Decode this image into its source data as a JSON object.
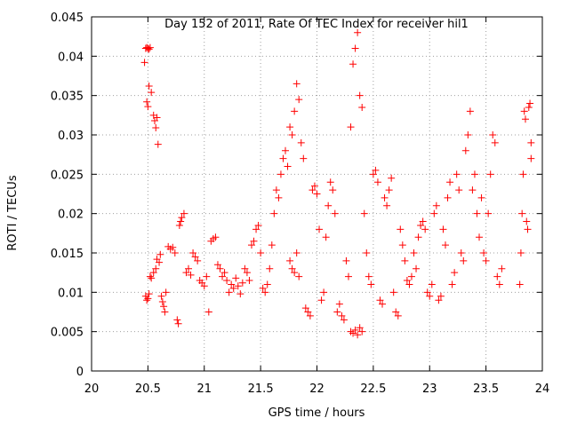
{
  "chart_data": {
    "type": "scatter",
    "title": "Day 152 of 2011, Rate Of TEC Index for receiver hil1",
    "xlabel": "GPS time / hours",
    "ylabel": "ROTI / TECUs",
    "xlim": [
      20,
      24
    ],
    "ylim": [
      0,
      0.045
    ],
    "x_ticks": [
      "20",
      "20.5",
      "21",
      "21.5",
      "22",
      "22.5",
      "23",
      "23.5",
      "24"
    ],
    "y_ticks": [
      "0",
      "0.005",
      "0.01",
      "0.015",
      "0.02",
      "0.025",
      "0.03",
      "0.035",
      "0.04",
      "0.045"
    ],
    "grid": true,
    "marker": "+",
    "color": "#ff0000",
    "points": [
      [
        20.47,
        0.0392
      ],
      [
        20.48,
        0.041
      ],
      [
        20.49,
        0.0411
      ],
      [
        20.5,
        0.041
      ],
      [
        20.51,
        0.0409
      ],
      [
        20.52,
        0.0411
      ],
      [
        20.49,
        0.0342
      ],
      [
        20.5,
        0.0336
      ],
      [
        20.51,
        0.0362
      ],
      [
        20.53,
        0.0354
      ],
      [
        20.55,
        0.0325
      ],
      [
        20.56,
        0.0318
      ],
      [
        20.57,
        0.0309
      ],
      [
        20.58,
        0.0322
      ],
      [
        20.59,
        0.0288
      ],
      [
        20.48,
        0.0095
      ],
      [
        20.49,
        0.009
      ],
      [
        20.5,
        0.0092
      ],
      [
        20.51,
        0.0098
      ],
      [
        20.52,
        0.012
      ],
      [
        20.53,
        0.0118
      ],
      [
        20.55,
        0.0125
      ],
      [
        20.57,
        0.013
      ],
      [
        20.58,
        0.0142
      ],
      [
        20.6,
        0.0138
      ],
      [
        20.61,
        0.0148
      ],
      [
        20.62,
        0.0095
      ],
      [
        20.63,
        0.0088
      ],
      [
        20.64,
        0.0082
      ],
      [
        20.65,
        0.0075
      ],
      [
        20.66,
        0.01
      ],
      [
        20.68,
        0.0158
      ],
      [
        20.7,
        0.0155
      ],
      [
        20.72,
        0.0157
      ],
      [
        20.74,
        0.015
      ],
      [
        20.76,
        0.0065
      ],
      [
        20.77,
        0.006
      ],
      [
        20.78,
        0.0185
      ],
      [
        20.79,
        0.019
      ],
      [
        20.8,
        0.0195
      ],
      [
        20.82,
        0.02
      ],
      [
        20.84,
        0.0125
      ],
      [
        20.86,
        0.013
      ],
      [
        20.88,
        0.0122
      ],
      [
        20.9,
        0.015
      ],
      [
        20.92,
        0.0145
      ],
      [
        20.94,
        0.014
      ],
      [
        20.96,
        0.0115
      ],
      [
        20.98,
        0.0112
      ],
      [
        21.0,
        0.0108
      ],
      [
        21.02,
        0.012
      ],
      [
        21.04,
        0.0075
      ],
      [
        21.06,
        0.0165
      ],
      [
        21.08,
        0.0168
      ],
      [
        21.1,
        0.017
      ],
      [
        21.12,
        0.0135
      ],
      [
        21.14,
        0.013
      ],
      [
        21.16,
        0.012
      ],
      [
        21.18,
        0.0125
      ],
      [
        21.2,
        0.0115
      ],
      [
        21.22,
        0.01
      ],
      [
        21.24,
        0.011
      ],
      [
        21.26,
        0.0105
      ],
      [
        21.28,
        0.0118
      ],
      [
        21.3,
        0.0108
      ],
      [
        21.32,
        0.0098
      ],
      [
        21.34,
        0.0112
      ],
      [
        21.36,
        0.013
      ],
      [
        21.38,
        0.0125
      ],
      [
        21.4,
        0.0115
      ],
      [
        21.42,
        0.016
      ],
      [
        21.44,
        0.0165
      ],
      [
        21.46,
        0.018
      ],
      [
        21.48,
        0.0185
      ],
      [
        21.5,
        0.015
      ],
      [
        21.52,
        0.0105
      ],
      [
        21.54,
        0.01
      ],
      [
        21.56,
        0.011
      ],
      [
        21.58,
        0.013
      ],
      [
        21.6,
        0.016
      ],
      [
        21.62,
        0.02
      ],
      [
        21.64,
        0.023
      ],
      [
        21.66,
        0.022
      ],
      [
        21.68,
        0.025
      ],
      [
        21.7,
        0.027
      ],
      [
        21.72,
        0.028
      ],
      [
        21.74,
        0.026
      ],
      [
        21.76,
        0.031
      ],
      [
        21.78,
        0.03
      ],
      [
        21.8,
        0.033
      ],
      [
        21.82,
        0.0365
      ],
      [
        21.84,
        0.0345
      ],
      [
        21.76,
        0.014
      ],
      [
        21.78,
        0.013
      ],
      [
        21.8,
        0.0125
      ],
      [
        21.82,
        0.015
      ],
      [
        21.84,
        0.012
      ],
      [
        21.86,
        0.029
      ],
      [
        21.88,
        0.027
      ],
      [
        21.9,
        0.008
      ],
      [
        21.92,
        0.0075
      ],
      [
        21.94,
        0.007
      ],
      [
        21.96,
        0.023
      ],
      [
        21.98,
        0.0235
      ],
      [
        22.0,
        0.0225
      ],
      [
        22.02,
        0.018
      ],
      [
        22.04,
        0.009
      ],
      [
        22.06,
        0.01
      ],
      [
        22.08,
        0.017
      ],
      [
        22.1,
        0.021
      ],
      [
        22.12,
        0.024
      ],
      [
        22.14,
        0.023
      ],
      [
        22.16,
        0.02
      ],
      [
        22.18,
        0.0075
      ],
      [
        22.2,
        0.0085
      ],
      [
        22.22,
        0.007
      ],
      [
        22.24,
        0.0065
      ],
      [
        22.26,
        0.014
      ],
      [
        22.28,
        0.012
      ],
      [
        22.3,
        0.031
      ],
      [
        22.32,
        0.039
      ],
      [
        22.34,
        0.041
      ],
      [
        22.36,
        0.043
      ],
      [
        22.38,
        0.035
      ],
      [
        22.4,
        0.0335
      ],
      [
        22.3,
        0.005
      ],
      [
        22.32,
        0.0048
      ],
      [
        22.34,
        0.0052
      ],
      [
        22.36,
        0.0046
      ],
      [
        22.38,
        0.0055
      ],
      [
        22.4,
        0.005
      ],
      [
        22.42,
        0.02
      ],
      [
        22.44,
        0.015
      ],
      [
        22.46,
        0.012
      ],
      [
        22.48,
        0.011
      ],
      [
        22.5,
        0.025
      ],
      [
        22.52,
        0.0255
      ],
      [
        22.54,
        0.024
      ],
      [
        22.56,
        0.009
      ],
      [
        22.58,
        0.0085
      ],
      [
        22.6,
        0.022
      ],
      [
        22.62,
        0.021
      ],
      [
        22.64,
        0.023
      ],
      [
        22.66,
        0.0245
      ],
      [
        22.68,
        0.01
      ],
      [
        22.7,
        0.0075
      ],
      [
        22.72,
        0.007
      ],
      [
        22.74,
        0.018
      ],
      [
        22.76,
        0.016
      ],
      [
        22.78,
        0.014
      ],
      [
        22.8,
        0.0115
      ],
      [
        22.82,
        0.011
      ],
      [
        22.84,
        0.012
      ],
      [
        22.86,
        0.015
      ],
      [
        22.88,
        0.013
      ],
      [
        22.9,
        0.017
      ],
      [
        22.92,
        0.0185
      ],
      [
        22.94,
        0.019
      ],
      [
        22.96,
        0.018
      ],
      [
        22.98,
        0.01
      ],
      [
        23.0,
        0.0095
      ],
      [
        23.02,
        0.011
      ],
      [
        23.04,
        0.02
      ],
      [
        23.06,
        0.021
      ],
      [
        23.08,
        0.009
      ],
      [
        23.1,
        0.0095
      ],
      [
        23.12,
        0.018
      ],
      [
        23.14,
        0.016
      ],
      [
        23.16,
        0.022
      ],
      [
        23.18,
        0.024
      ],
      [
        23.2,
        0.011
      ],
      [
        23.22,
        0.0125
      ],
      [
        23.24,
        0.025
      ],
      [
        23.26,
        0.023
      ],
      [
        23.28,
        0.015
      ],
      [
        23.3,
        0.014
      ],
      [
        23.32,
        0.028
      ],
      [
        23.34,
        0.03
      ],
      [
        23.36,
        0.033
      ],
      [
        23.38,
        0.023
      ],
      [
        23.4,
        0.025
      ],
      [
        23.42,
        0.02
      ],
      [
        23.44,
        0.017
      ],
      [
        23.46,
        0.022
      ],
      [
        23.48,
        0.015
      ],
      [
        23.5,
        0.014
      ],
      [
        23.52,
        0.02
      ],
      [
        23.54,
        0.025
      ],
      [
        23.56,
        0.03
      ],
      [
        23.58,
        0.029
      ],
      [
        23.6,
        0.012
      ],
      [
        23.62,
        0.011
      ],
      [
        23.64,
        0.013
      ],
      [
        23.8,
        0.011
      ],
      [
        23.81,
        0.015
      ],
      [
        23.82,
        0.02
      ],
      [
        23.83,
        0.025
      ],
      [
        23.84,
        0.033
      ],
      [
        23.85,
        0.032
      ],
      [
        23.86,
        0.019
      ],
      [
        23.87,
        0.018
      ],
      [
        23.88,
        0.0335
      ],
      [
        23.89,
        0.034
      ],
      [
        23.9,
        0.027
      ],
      [
        23.9,
        0.029
      ]
    ]
  }
}
